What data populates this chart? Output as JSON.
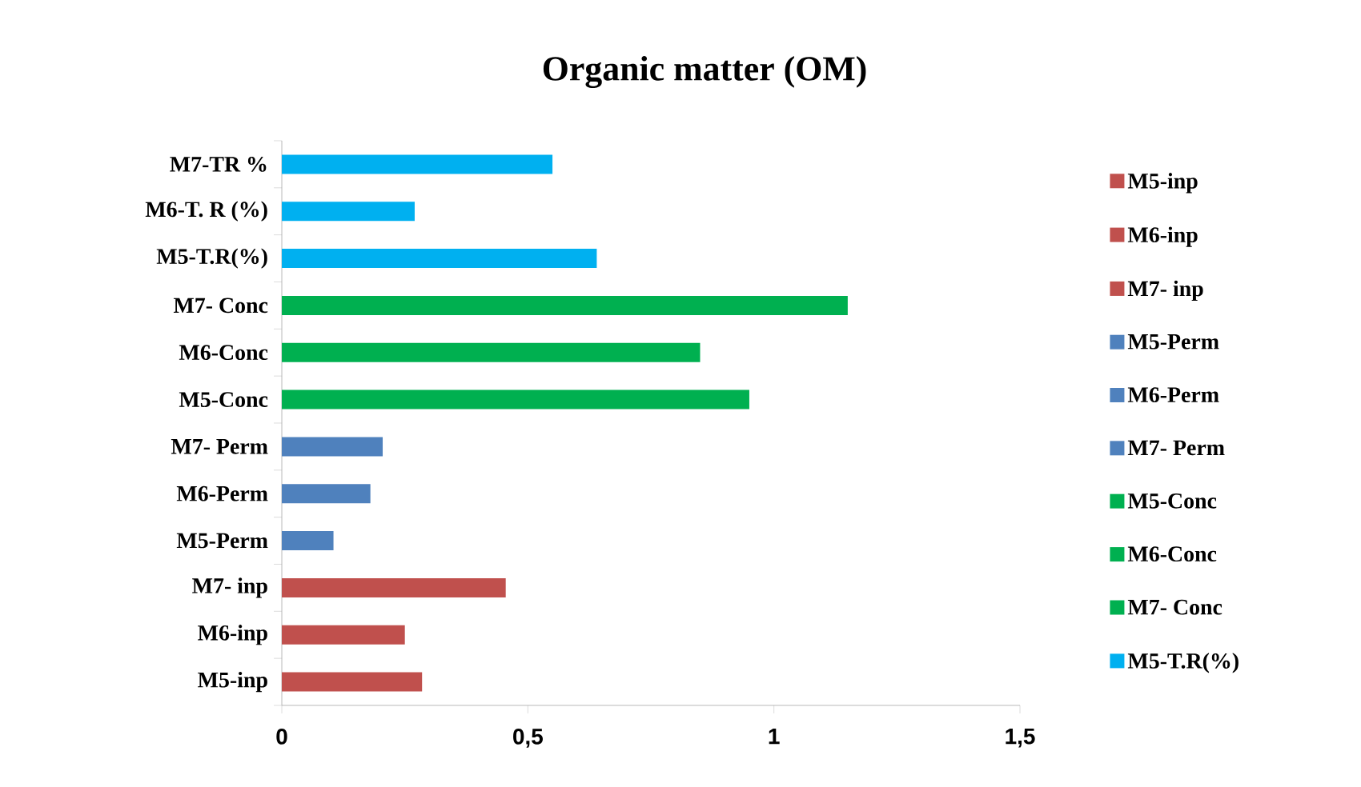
{
  "chart_data": {
    "type": "bar",
    "orientation": "horizontal",
    "title": "Organic matter (OM)",
    "categories": [
      "M7-TR %",
      "M6-T. R (%)",
      "M5-T.R(%)",
      "M7- Conc",
      "M6-Conc",
      "M5-Conc",
      "M7- Perm",
      "M6-Perm",
      "M5-Perm",
      "M7- inp",
      "M6-inp",
      "M5-inp"
    ],
    "series": [
      {
        "name": "M5-inp",
        "color": "#c0504d",
        "values": [
          null,
          null,
          null,
          null,
          null,
          null,
          null,
          null,
          null,
          null,
          null,
          0.285
        ]
      },
      {
        "name": "M6-inp",
        "color": "#c0504d",
        "values": [
          null,
          null,
          null,
          null,
          null,
          null,
          null,
          null,
          null,
          null,
          0.25,
          null
        ]
      },
      {
        "name": "M7- inp",
        "color": "#c0504d",
        "values": [
          null,
          null,
          null,
          null,
          null,
          null,
          null,
          null,
          null,
          0.455,
          null,
          null
        ]
      },
      {
        "name": "M5-Perm",
        "color": "#4f81bd",
        "values": [
          null,
          null,
          null,
          null,
          null,
          null,
          null,
          null,
          0.105,
          null,
          null,
          null
        ]
      },
      {
        "name": "M6-Perm",
        "color": "#4f81bd",
        "values": [
          null,
          null,
          null,
          null,
          null,
          null,
          null,
          0.18,
          null,
          null,
          null,
          null
        ]
      },
      {
        "name": "M7- Perm",
        "color": "#4f81bd",
        "values": [
          null,
          null,
          null,
          null,
          null,
          null,
          0.205,
          null,
          null,
          null,
          null,
          null
        ]
      },
      {
        "name": "M5-Conc",
        "color": "#00b050",
        "values": [
          null,
          null,
          null,
          null,
          null,
          0.95,
          null,
          null,
          null,
          null,
          null,
          null
        ]
      },
      {
        "name": "M6-Conc",
        "color": "#00b050",
        "values": [
          null,
          null,
          null,
          null,
          0.85,
          null,
          null,
          null,
          null,
          null,
          null,
          null
        ]
      },
      {
        "name": "M7- Conc",
        "color": "#00b050",
        "values": [
          null,
          null,
          null,
          1.15,
          null,
          null,
          null,
          null,
          null,
          null,
          null,
          null
        ]
      },
      {
        "name": "M5-T.R(%)",
        "color": "#00b0f0",
        "values": [
          null,
          null,
          0.64,
          null,
          null,
          null,
          null,
          null,
          null,
          null,
          null,
          null
        ]
      },
      {
        "color": "#00b0f0",
        "values": [
          null,
          0.27,
          null,
          null,
          null,
          null,
          null,
          null,
          null,
          null,
          null,
          null
        ]
      },
      {
        "color": "#00b0f0",
        "values": [
          0.55,
          null,
          null,
          null,
          null,
          null,
          null,
          null,
          null,
          null,
          null,
          null
        ]
      }
    ],
    "xlim": [
      0,
      1.5
    ],
    "xticks": [
      0,
      {
        "value": 0.5,
        "label": "0,5"
      },
      1,
      {
        "value": 1.5,
        "label": "1,5"
      }
    ],
    "legend": "right",
    "grid": false
  }
}
